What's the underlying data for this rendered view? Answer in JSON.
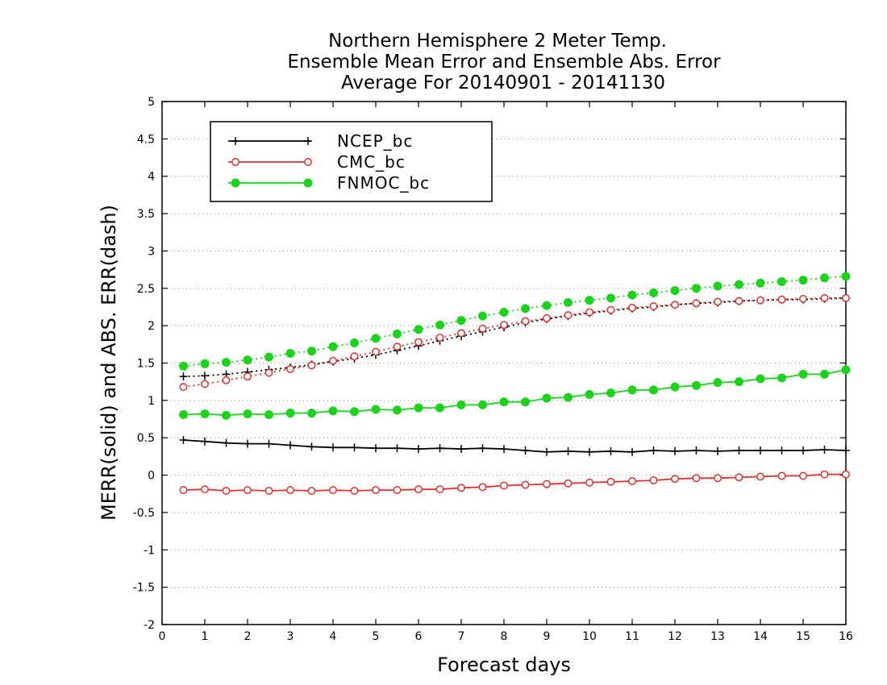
{
  "chart_data": {
    "type": "line",
    "title": [
      "Northern Hemisphere 2 Meter Temp.",
      "Ensemble Mean Error and Ensemble Abs. Error",
      "Average For 20140901 - 20141130"
    ],
    "xlabel": "Forecast days",
    "ylabel": "MERR(solid) and ABS. ERR(dash)",
    "xlim": [
      0,
      16
    ],
    "ylim": [
      -2,
      5
    ],
    "xticks": [
      0,
      1,
      2,
      3,
      4,
      5,
      6,
      7,
      8,
      9,
      10,
      11,
      12,
      13,
      14,
      15,
      16
    ],
    "yticks": [
      -2,
      -1.5,
      -1,
      -0.5,
      0,
      0.5,
      1,
      1.5,
      2,
      2.5,
      3,
      3.5,
      4,
      4.5,
      5
    ],
    "ytick_labels": [
      "-2",
      "-1.5",
      "-1",
      "-0.5",
      "0",
      "0.5",
      "1",
      "1.5",
      "2",
      "2.5",
      "3",
      "3.5",
      "4",
      "4.5",
      "5"
    ],
    "grid": "horizontal dotted",
    "legend_position": "top-left",
    "x": [
      0.5,
      1,
      1.5,
      2,
      2.5,
      3,
      3.5,
      4,
      4.5,
      5,
      5.5,
      6,
      6.5,
      7,
      7.5,
      8,
      8.5,
      9,
      9.5,
      10,
      10.5,
      11,
      11.5,
      12,
      12.5,
      13,
      13.5,
      14,
      14.5,
      15,
      15.5,
      16
    ],
    "series": [
      {
        "name": "NCEP_bc",
        "color": "#000000",
        "marker": "plus",
        "merr": [
          0.47,
          0.45,
          0.43,
          0.42,
          0.42,
          0.4,
          0.38,
          0.37,
          0.37,
          0.36,
          0.36,
          0.35,
          0.36,
          0.35,
          0.36,
          0.35,
          0.33,
          0.31,
          0.32,
          0.31,
          0.32,
          0.31,
          0.33,
          0.32,
          0.33,
          0.32,
          0.33,
          0.33,
          0.33,
          0.33,
          0.34,
          0.33
        ],
        "abs_err": [
          1.32,
          1.33,
          1.35,
          1.38,
          1.41,
          1.44,
          1.48,
          1.52,
          1.56,
          1.61,
          1.67,
          1.73,
          1.8,
          1.86,
          1.92,
          1.98,
          2.04,
          2.09,
          2.13,
          2.17,
          2.2,
          2.23,
          2.25,
          2.28,
          2.3,
          2.31,
          2.33,
          2.34,
          2.35,
          2.35,
          2.36,
          2.37
        ]
      },
      {
        "name": "CMC_bc",
        "color": "#e0302b",
        "marker": "open-circle",
        "merr": [
          -0.2,
          -0.19,
          -0.21,
          -0.2,
          -0.21,
          -0.2,
          -0.21,
          -0.2,
          -0.21,
          -0.2,
          -0.2,
          -0.19,
          -0.19,
          -0.17,
          -0.16,
          -0.14,
          -0.13,
          -0.12,
          -0.11,
          -0.1,
          -0.09,
          -0.08,
          -0.07,
          -0.05,
          -0.04,
          -0.04,
          -0.03,
          -0.02,
          -0.01,
          -0.01,
          0.01,
          0.01
        ],
        "abs_err": [
          1.18,
          1.22,
          1.27,
          1.32,
          1.37,
          1.42,
          1.47,
          1.53,
          1.59,
          1.65,
          1.72,
          1.78,
          1.84,
          1.9,
          1.96,
          2.01,
          2.06,
          2.1,
          2.14,
          2.18,
          2.21,
          2.24,
          2.26,
          2.28,
          2.3,
          2.32,
          2.33,
          2.34,
          2.35,
          2.36,
          2.37,
          2.37
        ]
      },
      {
        "name": "FNMOC_bc",
        "color": "#1ad31a",
        "marker": "filled-circle",
        "merr": [
          0.81,
          0.82,
          0.8,
          0.82,
          0.81,
          0.83,
          0.83,
          0.86,
          0.85,
          0.88,
          0.87,
          0.9,
          0.9,
          0.94,
          0.94,
          0.98,
          0.98,
          1.03,
          1.04,
          1.08,
          1.1,
          1.14,
          1.14,
          1.18,
          1.2,
          1.24,
          1.25,
          1.29,
          1.3,
          1.35,
          1.35,
          1.41
        ],
        "abs_err": [
          1.46,
          1.49,
          1.51,
          1.54,
          1.58,
          1.63,
          1.66,
          1.72,
          1.77,
          1.83,
          1.89,
          1.95,
          2.01,
          2.07,
          2.13,
          2.18,
          2.23,
          2.27,
          2.31,
          2.34,
          2.37,
          2.41,
          2.44,
          2.47,
          2.5,
          2.53,
          2.55,
          2.57,
          2.59,
          2.61,
          2.64,
          2.66
        ]
      }
    ]
  }
}
